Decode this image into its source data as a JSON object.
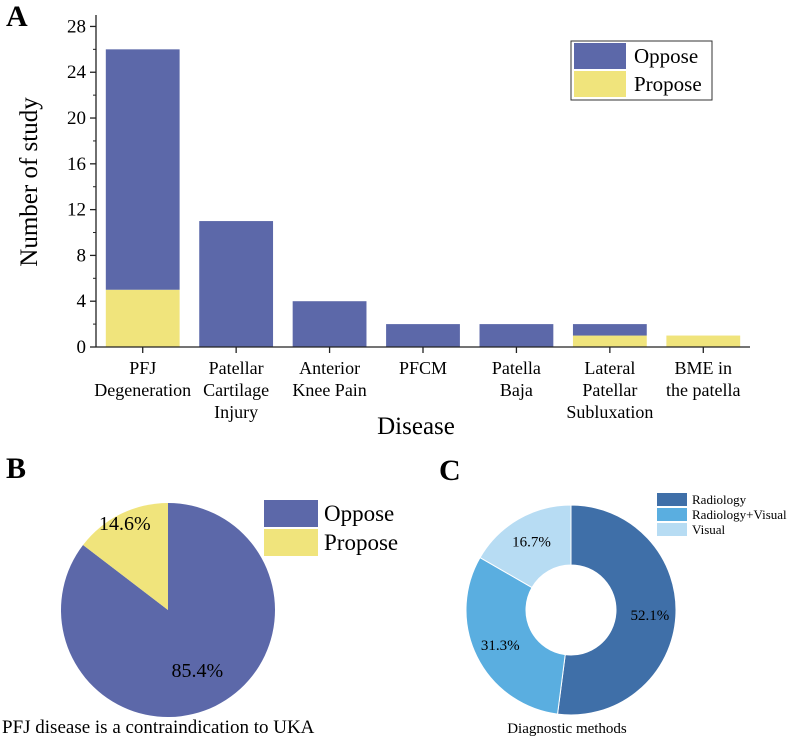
{
  "colors": {
    "oppose": "#5c68a9",
    "propose": "#f0e47c",
    "radiology": "#3f6fa8",
    "radiology_visual": "#5aaee0",
    "visual": "#b7dcf3",
    "axis": "#222222"
  },
  "chart_data": [
    {
      "panel": "A",
      "type": "bar",
      "stacked": true,
      "xlabel": "Disease",
      "ylabel": "Number of study",
      "ylim": [
        0,
        29
      ],
      "yticks": [
        0,
        4,
        8,
        12,
        16,
        20,
        24,
        28
      ],
      "categories": [
        [
          "PFJ",
          "Degeneration"
        ],
        [
          "Patellar",
          "Cartilage",
          "Injury"
        ],
        [
          "Anterior",
          "Knee Pain"
        ],
        [
          "PFCM"
        ],
        [
          "Patella",
          "Baja"
        ],
        [
          "Lateral",
          "Patellar",
          "Subluxation"
        ],
        [
          "BME in",
          "the patella"
        ]
      ],
      "series": [
        {
          "name": "Propose",
          "values": [
            5,
            0,
            0,
            0,
            0,
            1,
            1
          ]
        },
        {
          "name": "Oppose",
          "values": [
            21,
            11,
            4,
            2,
            2,
            1,
            0
          ]
        }
      ],
      "legend": [
        "Oppose",
        "Propose"
      ],
      "legend_position": "top-right"
    },
    {
      "panel": "B",
      "type": "pie",
      "title": "PFJ disease is a contraindication to UKA",
      "slices": [
        {
          "name": "Oppose",
          "value": 85.4,
          "label": "85.4%"
        },
        {
          "name": "Propose",
          "value": 14.6,
          "label": "14.6%"
        }
      ],
      "legend": [
        "Oppose",
        "Propose"
      ],
      "legend_position": "top-right"
    },
    {
      "panel": "C",
      "type": "pie",
      "donut": true,
      "title": "Diagnostic methods",
      "slices": [
        {
          "name": "Radiology",
          "value": 52.1,
          "label": "52.1%"
        },
        {
          "name": "Radiology+Visual",
          "value": 31.3,
          "label": "31.3%"
        },
        {
          "name": "Visual",
          "value": 16.7,
          "label": "16.7%"
        }
      ],
      "legend": [
        "Radiology",
        "Radiology+Visual",
        "Visual"
      ],
      "legend_position": "top-right"
    }
  ]
}
